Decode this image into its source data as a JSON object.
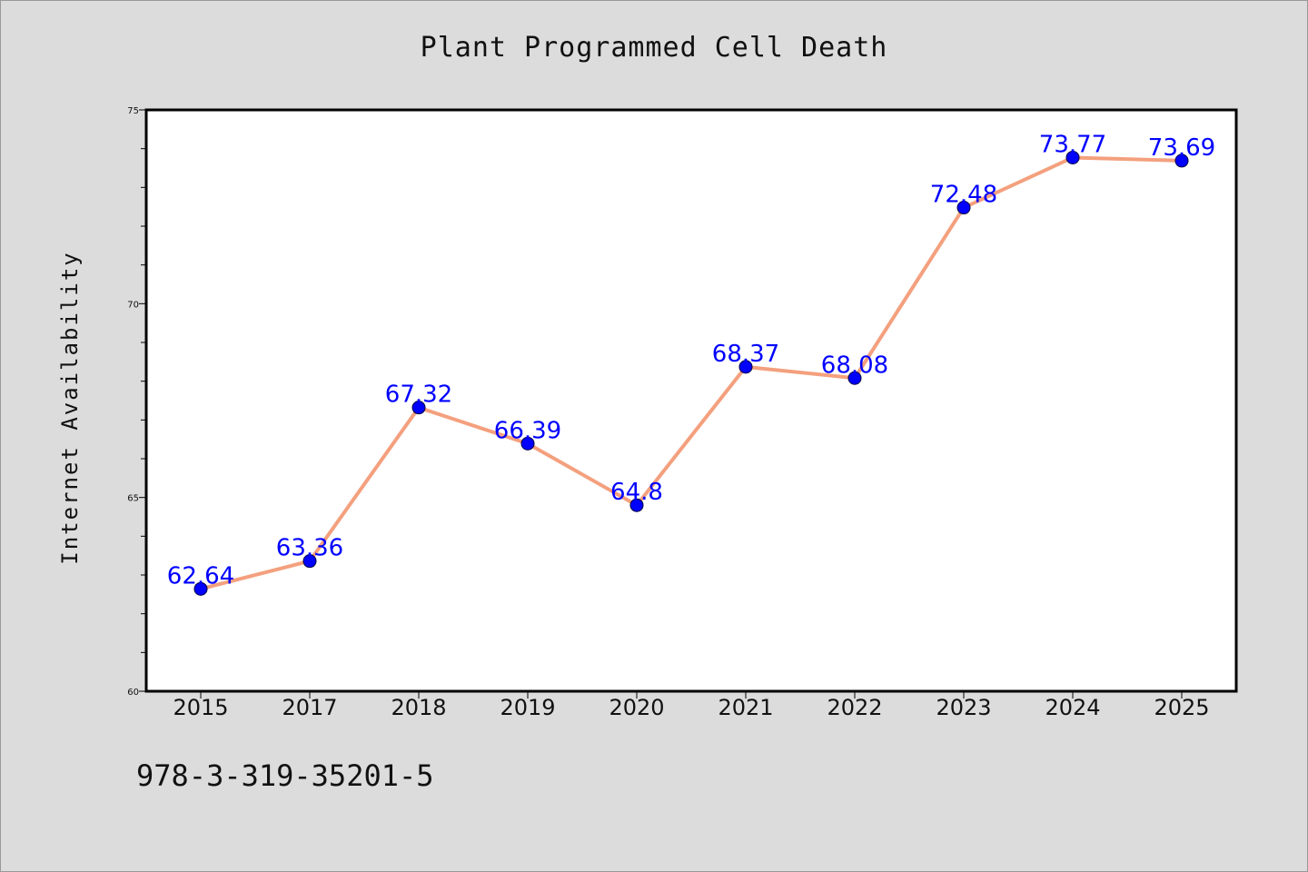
{
  "chart_data": {
    "type": "line",
    "title": "Plant Programmed Cell Death",
    "xlabel": "",
    "ylabel": "Internet Availability",
    "categories": [
      "2015",
      "2017",
      "2018",
      "2019",
      "2020",
      "2021",
      "2022",
      "2023",
      "2024",
      "2025"
    ],
    "series": [
      {
        "values": [
          62.64,
          63.36,
          67.32,
          66.39,
          64.8,
          68.37,
          68.08,
          72.48,
          73.77,
          73.69
        ],
        "labels": [
          "62.64",
          "63.36",
          "67.32",
          "66.39",
          "64.8",
          "68.37",
          "68.08",
          "72.48",
          "73.77",
          "73.69"
        ]
      }
    ],
    "ylim": [
      60,
      75
    ],
    "yticks": [
      "60",
      "65",
      "70",
      "75"
    ],
    "grid": false,
    "legend": "none",
    "colors": {
      "line": "#f4a07e",
      "marker": "#0000ff",
      "data_label": "#0000ff",
      "background": "#dcdcdc",
      "plot_background": "#ffffff"
    }
  },
  "footer": {
    "identifier": "978-3-319-35201-5"
  }
}
